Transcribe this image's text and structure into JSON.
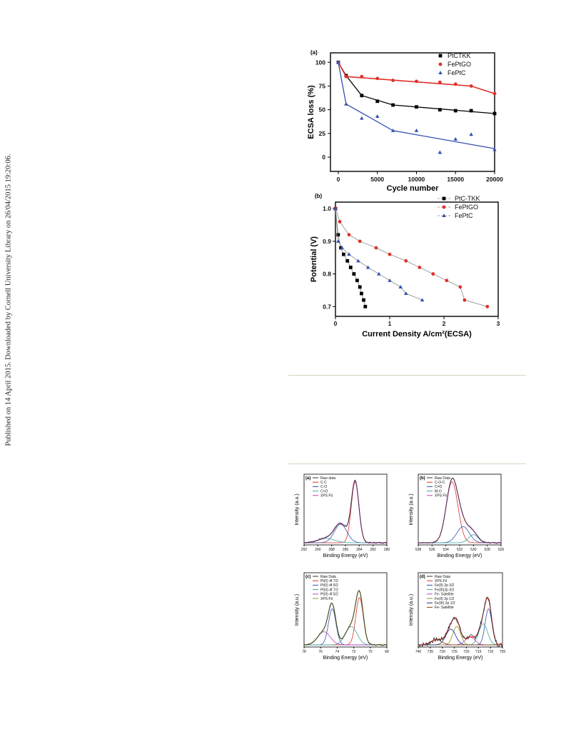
{
  "side_note": "Published on 14 April 2015. Downloaded by Cornell University Library on 26/04/2015 19:20:06.",
  "chart_data": [
    {
      "panel": "(a)",
      "type": "scatter",
      "xlabel": "Cycle number",
      "ylabel": "ECSA loss (%)",
      "xlim": [
        -1000,
        20000
      ],
      "ylim": [
        -15,
        110
      ],
      "xticks": [
        0,
        5000,
        10000,
        15000,
        20000
      ],
      "yticks": [
        0,
        25,
        50,
        75,
        100
      ],
      "legend": "top-right",
      "series": [
        {
          "name": "PtCTKK",
          "marker": "square",
          "color": "#000000",
          "x": [
            0,
            1000,
            3000,
            5000,
            7000,
            10000,
            13000,
            15000,
            17000,
            20000
          ],
          "y": [
            100,
            86,
            65,
            59,
            55,
            53,
            50,
            49,
            49,
            46
          ],
          "fit_x": [
            0,
            1000,
            3000,
            7000,
            20000
          ],
          "fit_y": [
            100,
            86,
            65,
            55,
            46
          ]
        },
        {
          "name": "FePtGO",
          "marker": "circle",
          "color": "#e0302a",
          "x": [
            0,
            1000,
            3000,
            5000,
            7000,
            10000,
            13000,
            15000,
            17000,
            20000
          ],
          "y": [
            100,
            85,
            85,
            83,
            81,
            80,
            79,
            77,
            75,
            67
          ],
          "fit_x": [
            0,
            1000,
            17000,
            20000
          ],
          "fit_y": [
            100,
            85,
            75,
            67
          ]
        },
        {
          "name": "FePtC",
          "marker": "triangle",
          "color": "#3550b0",
          "x": [
            0,
            1000,
            3000,
            5000,
            7000,
            10000,
            13000,
            15000,
            17000,
            20000
          ],
          "y": [
            100,
            56,
            41,
            43,
            28,
            28,
            5,
            19,
            24,
            8
          ],
          "fit_x": [
            0,
            1000,
            7000,
            20000
          ],
          "fit_y": [
            100,
            56,
            28,
            9
          ]
        }
      ]
    },
    {
      "panel": "(b)",
      "type": "line",
      "xlabel": "Current Density A/cm²(ECSA)",
      "ylabel": "Potential (V)",
      "xlim": [
        0,
        3
      ],
      "ylim": [
        0.67,
        1.02
      ],
      "xticks": [
        0,
        1,
        2,
        3
      ],
      "yticks": [
        0.7,
        0.8,
        0.9,
        1.0
      ],
      "ytick_labels": [
        "0.7",
        "0.8",
        "0.9",
        "1.0"
      ],
      "legend": "top-right",
      "series": [
        {
          "name": "PtC-TKK",
          "marker": "square",
          "color": "#000000",
          "x": [
            0.0,
            0.05,
            0.1,
            0.15,
            0.22,
            0.28,
            0.34,
            0.4,
            0.45,
            0.48,
            0.52,
            0.55
          ],
          "y": [
            1.0,
            0.92,
            0.88,
            0.86,
            0.84,
            0.82,
            0.8,
            0.78,
            0.76,
            0.74,
            0.72,
            0.7
          ]
        },
        {
          "name": "FePtGO",
          "marker": "circle",
          "color": "#e0302a",
          "x": [
            0.0,
            0.08,
            0.25,
            0.45,
            0.75,
            1.0,
            1.3,
            1.55,
            1.8,
            2.05,
            2.3,
            2.38,
            2.8
          ],
          "y": [
            1.0,
            0.96,
            0.92,
            0.9,
            0.88,
            0.86,
            0.84,
            0.82,
            0.8,
            0.78,
            0.76,
            0.72,
            0.7
          ]
        },
        {
          "name": "FePtC",
          "marker": "triangle",
          "color": "#3550b0",
          "x": [
            0.0,
            0.05,
            0.12,
            0.25,
            0.42,
            0.6,
            0.8,
            1.0,
            1.2,
            1.3,
            1.6
          ],
          "y": [
            1.0,
            0.9,
            0.88,
            0.86,
            0.84,
            0.82,
            0.8,
            0.78,
            0.76,
            0.74,
            0.72
          ]
        }
      ]
    },
    {
      "panel": "(a)",
      "type": "line",
      "xlabel": "Binding Energy (eV)",
      "ylabel": "Intensity (a.u.)",
      "xlim": [
        292,
        280
      ],
      "xticks": [
        292,
        290,
        288,
        286,
        284,
        282,
        280
      ],
      "legend": "top-left",
      "series": [
        {
          "name": "Raw data",
          "color": "#333333"
        },
        {
          "name": "C-C",
          "color": "#e0302a"
        },
        {
          "name": "C-O",
          "color": "#3550b0"
        },
        {
          "name": "C=O",
          "color": "#3aa8a0"
        },
        {
          "name": "XPS Fit",
          "color": "#c040c0"
        }
      ]
    },
    {
      "panel": "(b)",
      "type": "line",
      "xlabel": "Binding Energy (eV)",
      "ylabel": "Intensity (a.u.)",
      "xlim": [
        538,
        526
      ],
      "xticks": [
        538,
        536,
        534,
        532,
        530,
        528,
        526
      ],
      "legend": "top-left",
      "series": [
        {
          "name": "Raw Data",
          "color": "#333333"
        },
        {
          "name": "C-O-C",
          "color": "#e0302a"
        },
        {
          "name": "C=O",
          "color": "#3550b0"
        },
        {
          "name": "M-O",
          "color": "#3aa8a0"
        },
        {
          "name": "XPS Fit",
          "color": "#c040c0"
        }
      ]
    },
    {
      "panel": "(c)",
      "type": "line",
      "xlabel": "Binding Energy (eV)",
      "ylabel": "Intensity (a.u.)",
      "xlim": [
        78,
        68
      ],
      "xticks": [
        78,
        76,
        74,
        72,
        70,
        68
      ],
      "legend": "top-left",
      "series": [
        {
          "name": "Raw Data",
          "color": "#333333"
        },
        {
          "name": "Pt(0) 4f 7/2",
          "color": "#e0302a"
        },
        {
          "name": "Pt(0) 4f 5/2",
          "color": "#3550b0"
        },
        {
          "name": "Pt(II) 4f 7/2",
          "color": "#3aa8a0"
        },
        {
          "name": "Pt(II) 4f 5/2",
          "color": "#c040c0"
        },
        {
          "name": "XPS Fit",
          "color": "#8a9a20"
        }
      ]
    },
    {
      "panel": "(d)",
      "type": "line",
      "xlabel": "Binding Energy (eV)",
      "ylabel": "Intensity (a.u.)",
      "xlim": [
        740,
        705
      ],
      "xticks": [
        740,
        735,
        730,
        725,
        720,
        715,
        710,
        705
      ],
      "legend": "top-left",
      "series": [
        {
          "name": "Raw Data",
          "color": "#333333"
        },
        {
          "name": "XPS Fit",
          "color": "#e0302a"
        },
        {
          "name": "Fe(II) 2p 3/2",
          "color": "#3550b0"
        },
        {
          "name": "Fe(III)2p 3/2",
          "color": "#3aa8a0"
        },
        {
          "name": "Fe- Satellite",
          "color": "#c040c0"
        },
        {
          "name": "Fe(II) 2p 1/2",
          "color": "#8a9a20"
        },
        {
          "name": "Fe(III) 2p 1/2",
          "color": "#222288"
        },
        {
          "name": "Fe- Satellite",
          "color": "#884400"
        }
      ]
    }
  ]
}
